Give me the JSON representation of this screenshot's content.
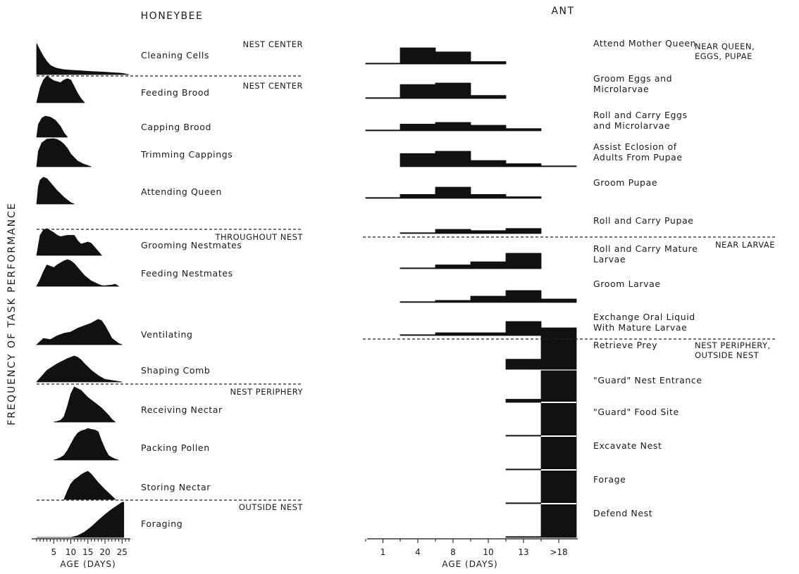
{
  "chart_data": [
    {
      "type": "area",
      "title": "HONEYBEE",
      "xlabel": "AGE (DAYS)",
      "ylabel": "FREQUENCY OF TASK PERFORMANCE",
      "x_ticks": [
        5,
        10,
        15,
        20,
        25
      ],
      "xlim": [
        0,
        27
      ],
      "ylim": [
        0,
        1
      ],
      "sections": [
        {
          "label": "NEST CENTER",
          "tasks": [
            {
              "name": "Cleaning Cells",
              "x": [
                0,
                1,
                2,
                3,
                4,
                5,
                6,
                8,
                10,
                13,
                16,
                20,
                25,
                27
              ],
              "values": [
                1,
                0.78,
                0.58,
                0.42,
                0.3,
                0.24,
                0.2,
                0.16,
                0.14,
                0.12,
                0.1,
                0.08,
                0.04,
                0
              ]
            }
          ]
        },
        {
          "label": "NEST CENTER",
          "tasks": [
            {
              "name": "Feeding Brood",
              "x": [
                0,
                1,
                2,
                3,
                5,
                7,
                8,
                9,
                10,
                11,
                12,
                13,
                14
              ],
              "values": [
                0,
                0.55,
                0.85,
                1,
                0.82,
                0.75,
                0.85,
                0.9,
                0.85,
                0.6,
                0.35,
                0.15,
                0
              ]
            },
            {
              "name": "Capping Brood",
              "x": [
                0,
                0.5,
                1.5,
                2.5,
                4,
                5.5,
                7,
                8,
                9
              ],
              "values": [
                0,
                0.6,
                0.9,
                1,
                0.95,
                0.8,
                0.5,
                0.2,
                0
              ]
            },
            {
              "name": "Trimming Cappings",
              "x": [
                0,
                0.5,
                1.5,
                3,
                5,
                6,
                7,
                8,
                9,
                10,
                12,
                14,
                16
              ],
              "values": [
                0,
                0.55,
                0.85,
                0.98,
                1,
                0.97,
                0.9,
                0.8,
                0.65,
                0.45,
                0.2,
                0.08,
                0
              ]
            },
            {
              "name": "Attending Queen",
              "x": [
                0,
                0.5,
                1,
                2,
                3,
                4,
                5,
                6,
                7,
                8,
                9,
                10,
                11
              ],
              "values": [
                0,
                0.65,
                0.9,
                1,
                0.95,
                0.8,
                0.65,
                0.5,
                0.38,
                0.25,
                0.15,
                0.05,
                0
              ]
            }
          ]
        },
        {
          "label": "THROUGHOUT NEST",
          "tasks": [
            {
              "name": "Grooming Nestmates",
              "x": [
                0,
                1,
                2,
                3,
                5,
                6,
                7,
                9,
                11,
                12,
                13,
                15,
                16,
                17,
                18,
                19
              ],
              "values": [
                0,
                0.75,
                0.95,
                1,
                0.85,
                0.75,
                0.7,
                0.75,
                0.75,
                0.55,
                0.42,
                0.5,
                0.45,
                0.3,
                0.15,
                0
              ]
            },
            {
              "name": "Feeding Nestmates",
              "x": [
                0,
                1,
                2,
                3,
                5,
                6,
                8,
                9,
                10,
                11,
                12,
                13,
                14,
                16,
                18,
                19,
                20,
                22,
                23,
                24
              ],
              "values": [
                0,
                0.25,
                0.55,
                0.8,
                0.7,
                0.8,
                0.95,
                1,
                0.95,
                0.85,
                0.7,
                0.55,
                0.4,
                0.2,
                0.08,
                0.03,
                0.02,
                0.05,
                0.08,
                0
              ]
            },
            {
              "name": "Ventilating",
              "x": [
                0,
                2,
                4,
                6,
                8,
                10,
                12,
                14,
                16,
                18,
                19,
                20,
                21,
                22,
                24,
                25
              ],
              "values": [
                0,
                0.25,
                0.2,
                0.35,
                0.45,
                0.5,
                0.65,
                0.75,
                0.85,
                1,
                0.95,
                0.75,
                0.5,
                0.25,
                0.05,
                0
              ]
            },
            {
              "name": "Shaping Comb",
              "x": [
                0,
                3,
                6,
                9,
                11,
                12,
                13,
                14,
                16,
                18,
                20,
                22,
                24,
                25
              ],
              "values": [
                0,
                0.45,
                0.7,
                0.9,
                1,
                0.95,
                0.85,
                0.7,
                0.45,
                0.25,
                0.1,
                0.06,
                0.02,
                0
              ]
            }
          ]
        },
        {
          "label": "NEST PERIPHERY",
          "tasks": [
            {
              "name": "Receiving Nectar",
              "x": [
                5,
                6,
                7,
                8,
                9,
                10,
                11,
                12,
                13,
                14,
                15,
                17,
                19,
                21,
                22,
                23
              ],
              "values": [
                0,
                0.02,
                0.05,
                0.15,
                0.45,
                0.8,
                1,
                0.95,
                0.9,
                0.8,
                0.7,
                0.55,
                0.4,
                0.2,
                0.08,
                0
              ]
            },
            {
              "name": "Packing Pollen",
              "x": [
                5,
                6,
                7,
                8,
                9,
                10,
                11,
                12,
                13,
                14,
                15,
                16,
                17,
                18,
                19,
                20,
                21,
                22,
                23,
                24
              ],
              "values": [
                0,
                0.03,
                0.08,
                0.15,
                0.3,
                0.5,
                0.7,
                0.85,
                0.92,
                0.95,
                1,
                0.97,
                0.95,
                0.9,
                0.6,
                0.35,
                0.15,
                0.08,
                0.03,
                0
              ]
            },
            {
              "name": "Storing Nectar",
              "x": [
                8,
                9,
                10,
                11,
                12,
                13,
                14,
                15,
                16,
                18,
                20,
                22,
                23
              ],
              "values": [
                0,
                0.3,
                0.55,
                0.7,
                0.78,
                0.88,
                0.95,
                1,
                0.9,
                0.6,
                0.35,
                0.12,
                0
              ]
            }
          ]
        },
        {
          "label": "OUTSIDE NEST",
          "tasks": [
            {
              "name": "Foraging",
              "x": [
                0,
                10,
                12,
                14,
                16,
                18,
                20,
                22,
                24,
                25,
                25.5
              ],
              "values": [
                0,
                0,
                0.05,
                0.15,
                0.3,
                0.48,
                0.65,
                0.8,
                0.93,
                1,
                1
              ]
            }
          ]
        }
      ]
    },
    {
      "type": "bar",
      "title": "ANT",
      "xlabel": "AGE (DAYS)",
      "categories": [
        "1",
        "4",
        "8",
        "10",
        "13",
        ">18"
      ],
      "ylim": [
        0,
        1
      ],
      "sections": [
        {
          "label": "NEAR QUEEN, EGGS, PUPAE",
          "tasks": [
            {
              "name": "Attend Mother Queen",
              "values": [
                0.05,
                1,
                0.75,
                0.15,
                0,
                0
              ]
            },
            {
              "name": "Groom Eggs and Microlarvae",
              "values": [
                0.05,
                0.9,
                1,
                0.2,
                0,
                0
              ]
            },
            {
              "name": "Roll and Carry Eggs and Microlarvae",
              "values": [
                0.05,
                0.6,
                0.75,
                0.5,
                0.2,
                0
              ]
            },
            {
              "name": "Assist Eclosion of Adults From Pupae",
              "values": [
                0,
                0.85,
                1,
                0.4,
                0.2,
                0.05
              ]
            },
            {
              "name": "Groom Pupae",
              "values": [
                0.05,
                0.35,
                1,
                0.35,
                0.15,
                0
              ]
            },
            {
              "name": "Roll and Carry Pupae",
              "values": [
                0,
                0.05,
                0.5,
                0.35,
                0.6,
                0
              ]
            }
          ]
        },
        {
          "label": "NEAR LARVAE",
          "tasks": [
            {
              "name": "Roll and Carry Mature Larvae",
              "values": [
                0,
                0.05,
                0.25,
                0.45,
                1,
                0
              ]
            },
            {
              "name": "Groom Larvae",
              "values": [
                0,
                0.05,
                0.15,
                0.45,
                0.85,
                0.25
              ]
            },
            {
              "name": "Exchange Oral Liquid With Mature Larvae",
              "values": [
                0,
                0.05,
                0.2,
                0.2,
                1,
                0.55
              ]
            }
          ]
        },
        {
          "label": "NEST PERIPHERY, OUTSIDE NEST",
          "tasks": [
            {
              "name": "Retrieve Prey",
              "values": [
                0,
                0,
                0,
                0,
                0.3,
                1
              ]
            },
            {
              "name": "\"Guard\" Nest Entrance",
              "values": [
                0,
                0,
                0,
                0,
                0.1,
                1
              ]
            },
            {
              "name": "\"Guard\" Food Site",
              "values": [
                0,
                0,
                0,
                0,
                0.02,
                1
              ]
            },
            {
              "name": "Excavate Nest",
              "values": [
                0,
                0,
                0,
                0,
                0.02,
                1
              ]
            },
            {
              "name": "Forage",
              "values": [
                0,
                0,
                0,
                0,
                0.02,
                1
              ]
            },
            {
              "name": "Defend Nest",
              "values": [
                0,
                0,
                0,
                0,
                0.02,
                1
              ]
            }
          ]
        }
      ]
    }
  ]
}
